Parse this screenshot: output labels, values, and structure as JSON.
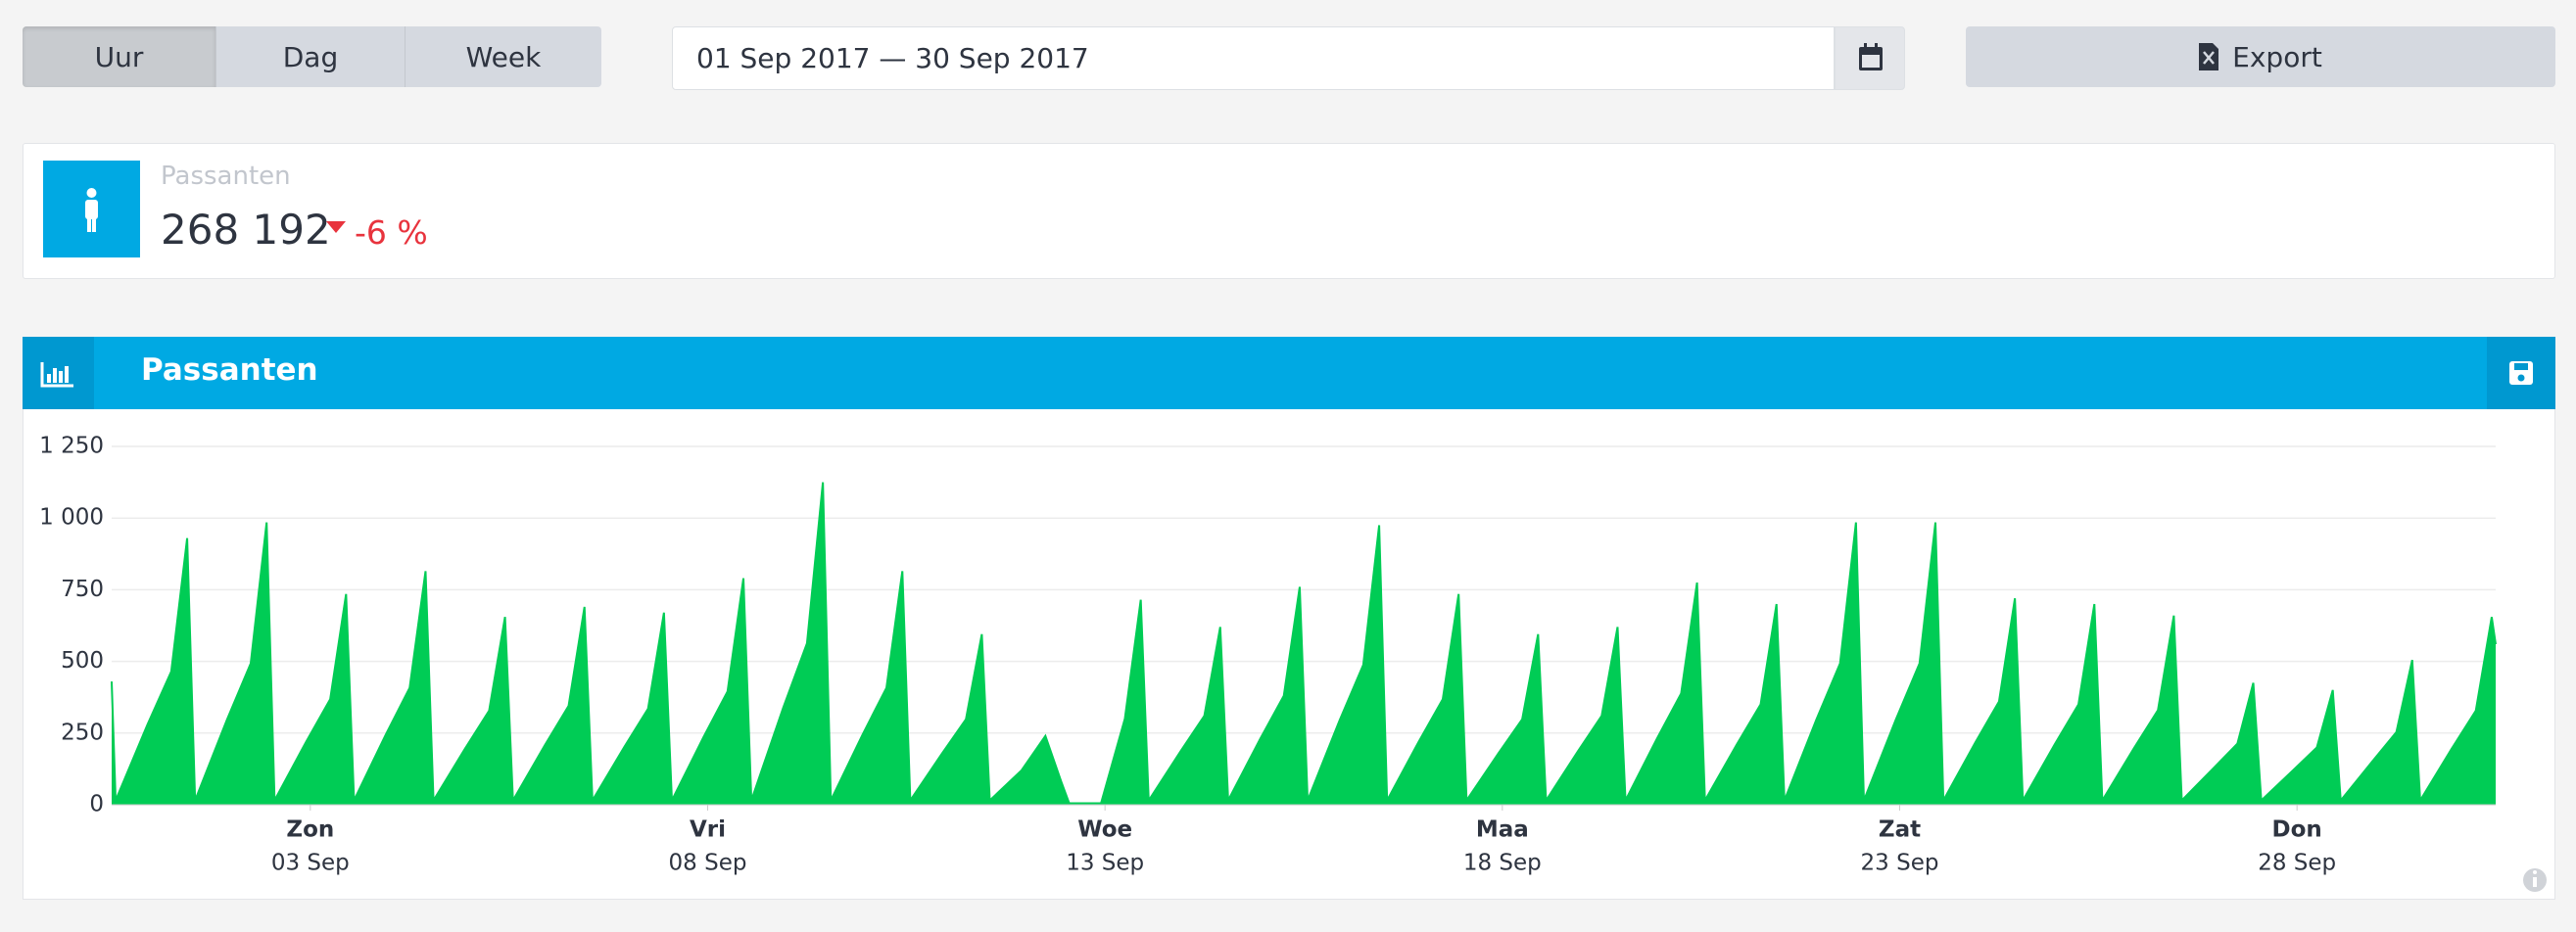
{
  "toolbar": {
    "granularity": [
      "Uur",
      "Dag",
      "Week"
    ],
    "date_range": "01 Sep 2017 — 30 Sep 2017",
    "export": "Export"
  },
  "kpi": {
    "label": "Passanten",
    "value": "268 192",
    "change": "-6 %"
  },
  "chart_data": {
    "type": "area",
    "title": "Passanten",
    "x": [
      0,
      0.05,
      0.45,
      0.75,
      0.95,
      1.05,
      1.45,
      1.75,
      1.95,
      2.05,
      2.45,
      2.75,
      2.95,
      3.05,
      3.45,
      3.75,
      3.95,
      4.05,
      4.45,
      4.75,
      4.95,
      5.05,
      5.45,
      5.75,
      5.95,
      6.05,
      6.45,
      6.75,
      6.95,
      7.05,
      7.45,
      7.75,
      7.95,
      8.05,
      8.45,
      8.75,
      8.95,
      9.05,
      9.45,
      9.75,
      9.95,
      10.05,
      10.45,
      10.75,
      10.95,
      11.05,
      11.45,
      11.75,
      11.95,
      12.05,
      12.45,
      12.75,
      12.95,
      13.05,
      13.45,
      13.75,
      13.95,
      14.05,
      14.45,
      14.75,
      14.95,
      15.05,
      15.45,
      15.75,
      15.95,
      16.05,
      16.45,
      16.75,
      16.95,
      17.05,
      17.45,
      17.75,
      17.95,
      18.05,
      18.45,
      18.75,
      18.95,
      19.05,
      19.45,
      19.75,
      19.95,
      20.05,
      20.45,
      20.75,
      20.95,
      21.05,
      21.45,
      21.75,
      21.95,
      22.05,
      22.45,
      22.75,
      22.95,
      23.05,
      23.45,
      23.75,
      23.95,
      24.05,
      24.45,
      24.75,
      24.95,
      25.05,
      25.45,
      25.75,
      25.95,
      26.05,
      26.45,
      26.75,
      26.95,
      27.05,
      27.45,
      27.75,
      27.95,
      28.05,
      28.45,
      28.75,
      28.95,
      29.05,
      29.45,
      29.75,
      29.95,
      30
    ],
    "series": [
      {
        "color": "#00cc55",
        "values": [
          430,
          15,
          279,
          465,
          930,
          15,
          296,
          493,
          985,
          15,
          221,
          368,
          735,
          15,
          245,
          408,
          815,
          15,
          197,
          328,
          655,
          15,
          207,
          345,
          690,
          15,
          201,
          335,
          670,
          15,
          237,
          395,
          790,
          15,
          338,
          563,
          1125,
          15,
          245,
          408,
          815,
          15,
          179,
          298,
          595,
          15,
          120,
          240,
          80,
          5,
          5,
          300,
          715,
          15,
          186,
          310,
          620,
          15,
          228,
          380,
          760,
          15,
          293,
          488,
          975,
          15,
          221,
          368,
          735,
          15,
          179,
          298,
          595,
          15,
          186,
          310,
          620,
          15,
          233,
          388,
          775,
          15,
          210,
          350,
          700,
          15,
          296,
          493,
          985,
          15,
          296,
          493,
          985,
          15,
          216,
          360,
          720,
          15,
          210,
          350,
          700,
          15,
          198,
          330,
          660,
          15,
          128,
          213,
          425,
          15,
          120,
          200,
          400,
          15,
          152,
          253,
          505,
          15,
          197,
          328,
          655,
          560
        ]
      }
    ],
    "xlim": [
      0,
      30
    ],
    "xticks": [
      {
        "value": 2.5,
        "label": [
          "Zon",
          "03 Sep"
        ]
      },
      {
        "value": 7.5,
        "label": [
          "Vri",
          "08 Sep"
        ]
      },
      {
        "value": 12.5,
        "label": [
          "Woe",
          "13 Sep"
        ]
      },
      {
        "value": 17.5,
        "label": [
          "Maa",
          "18 Sep"
        ]
      },
      {
        "value": 22.5,
        "label": [
          "Zat",
          "23 Sep"
        ]
      },
      {
        "value": 27.5,
        "label": [
          "Don",
          "28 Sep"
        ]
      }
    ],
    "ylim": [
      0,
      1250
    ],
    "yticks": [
      0,
      250,
      500,
      750,
      {
        "value": 1000,
        "label": "1 000"
      },
      {
        "value": 1250,
        "label": "1 250"
      }
    ],
    "grid": true
  }
}
